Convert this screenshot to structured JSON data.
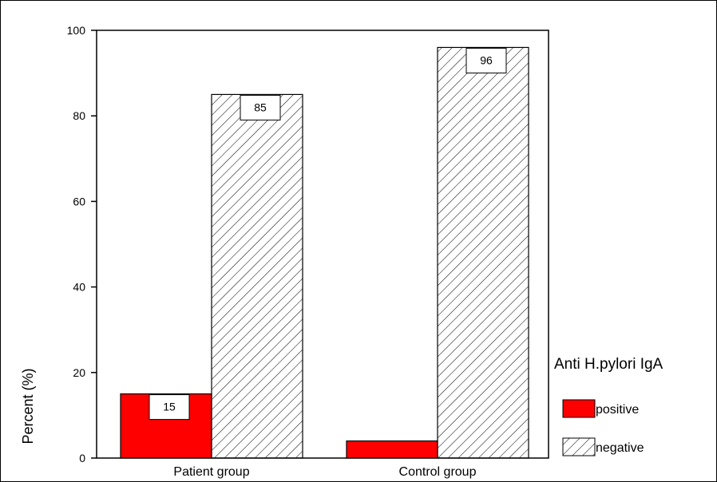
{
  "chart_data": {
    "type": "bar",
    "title": "",
    "xlabel": "",
    "ylabel": "Percent (%)",
    "ylim": [
      0,
      100
    ],
    "yticks": [
      0,
      20,
      40,
      60,
      80,
      100
    ],
    "grid": false,
    "categories": [
      "Patient group",
      "Control group"
    ],
    "legend": {
      "title": "Anti H.pylori IgA",
      "placement": "right"
    },
    "series": [
      {
        "name": "positive",
        "values": [
          15,
          4
        ],
        "color": "#ff0000",
        "pattern": "solid",
        "data_labels": [
          "15",
          ""
        ]
      },
      {
        "name": "negative",
        "values": [
          85,
          96
        ],
        "color": "#000000",
        "pattern": "diagonal-hatch",
        "data_labels": [
          "85",
          "96"
        ]
      }
    ]
  }
}
